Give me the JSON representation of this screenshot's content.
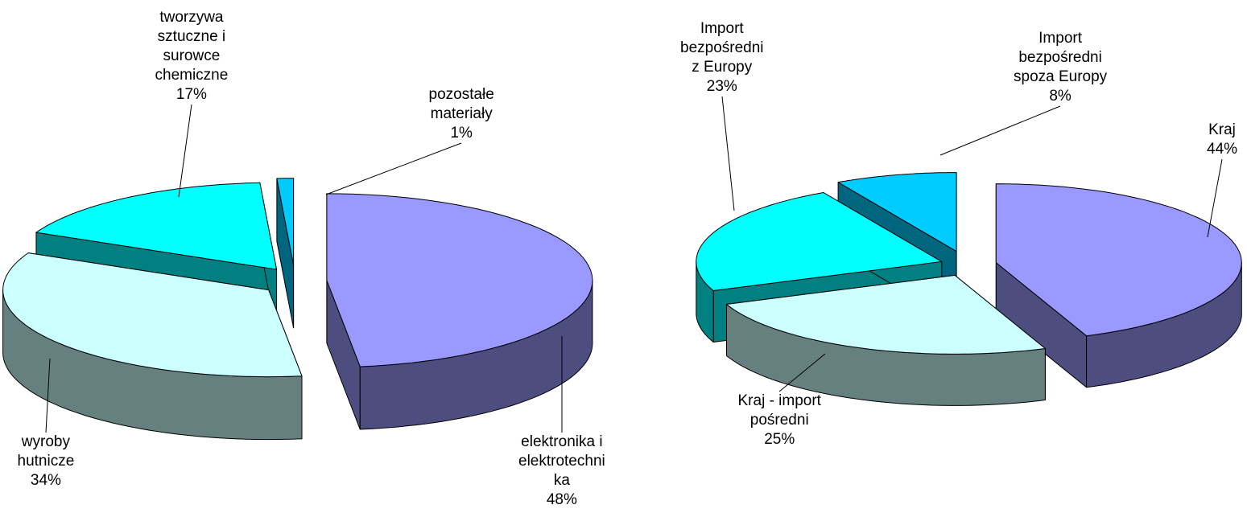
{
  "chart_data": [
    {
      "type": "pie",
      "style": "3d-exploded",
      "title": "",
      "legend": "none",
      "slices": [
        {
          "label": [
            "elektronika i",
            "elektrotechni",
            "ka"
          ],
          "value": 48,
          "value_label": "48%",
          "color": "#9999FF",
          "side_color": "#4D4D80"
        },
        {
          "label": [
            "wyroby",
            "hutnicze"
          ],
          "value": 34,
          "value_label": "34%",
          "color": "#CCFFFF",
          "side_color": "#668080"
        },
        {
          "label": [
            "tworzywa",
            "sztuczne i",
            "surowce",
            "chemiczne"
          ],
          "value": 17,
          "value_label": "17%",
          "color": "#00FFFF",
          "side_color": "#008080"
        },
        {
          "label": [
            "pozostałe",
            "materiały"
          ],
          "value": 1,
          "value_label": "1%",
          "color": "#00CCFF",
          "side_color": "#006680"
        }
      ]
    },
    {
      "type": "pie",
      "style": "3d-exploded",
      "title": "",
      "legend": "none",
      "slices": [
        {
          "label": [
            "Kraj"
          ],
          "value": 44,
          "value_label": "44%",
          "color": "#9999FF",
          "side_color": "#4D4D80"
        },
        {
          "label": [
            "Kraj - import",
            "pośredni"
          ],
          "value": 25,
          "value_label": "25%",
          "color": "#CCFFFF",
          "side_color": "#668080"
        },
        {
          "label": [
            "Import",
            "bezpośredni",
            "z Europy"
          ],
          "value": 23,
          "value_label": "23%",
          "color": "#00FFFF",
          "side_color": "#008080"
        },
        {
          "label": [
            "Import",
            "bezpośredni",
            "spoza Europy"
          ],
          "value": 8,
          "value_label": "8%",
          "color": "#00CCFF",
          "side_color": "#006680"
        }
      ]
    }
  ]
}
